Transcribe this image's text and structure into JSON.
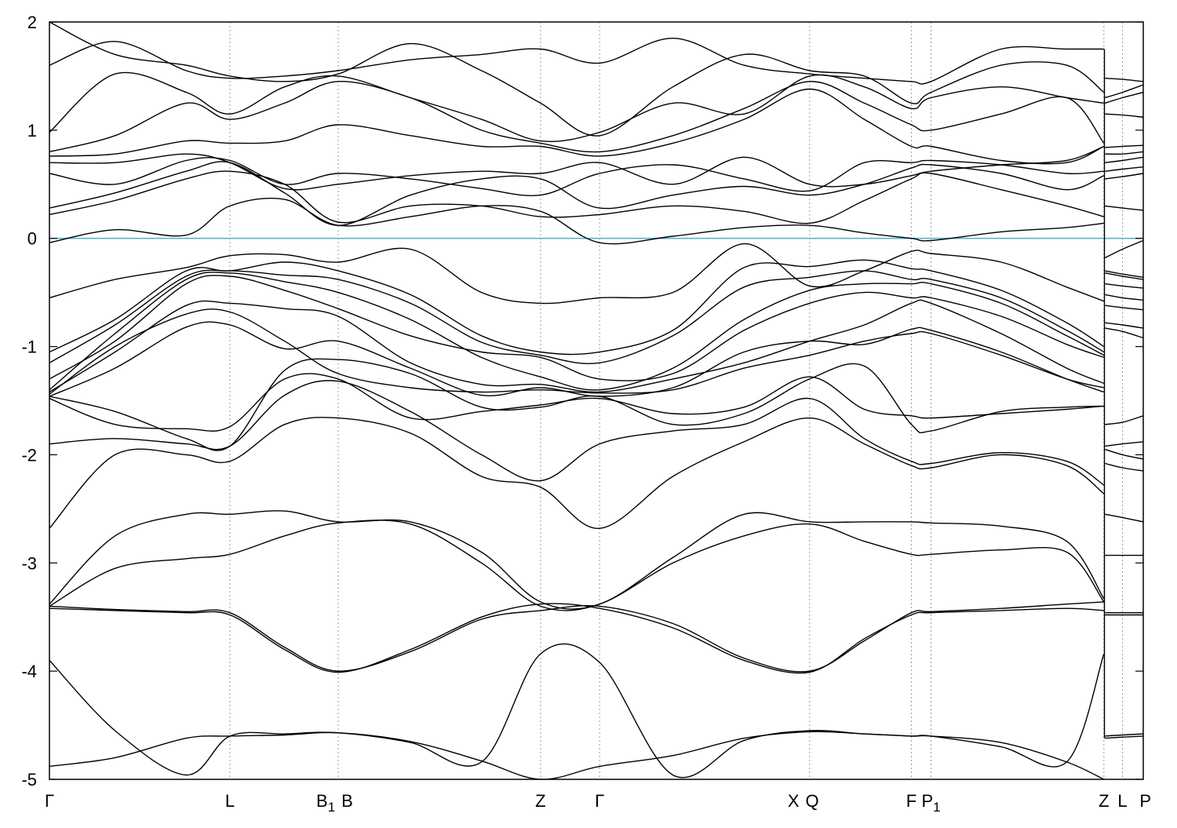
{
  "chart_data": {
    "type": "line",
    "title": "",
    "xlabel": "",
    "ylabel": "",
    "ylim": [
      -5,
      2
    ],
    "yticks": [
      -5,
      -4,
      -3,
      -2,
      -1,
      0,
      1,
      2
    ],
    "ytick_labels": [
      "-5",
      "-4",
      "-3",
      "-2",
      "-1",
      "0",
      "1",
      "2"
    ],
    "grid": "vertical dotted lines at high-symmetry points",
    "fermi_level": 0,
    "colors": {
      "bands": "#000000",
      "fermi": "#5ab4cf",
      "grid": "#9a9a9a"
    },
    "kpath_break_after_index": 9,
    "kpoints": [
      {
        "pos": 0.0,
        "label": "Γ",
        "sub": ""
      },
      {
        "pos": 0.165,
        "label": "L",
        "sub": ""
      },
      {
        "pos": 0.264,
        "label": "B",
        "sub": "1",
        "label2": "B"
      },
      {
        "pos": 0.449,
        "label": "Z",
        "sub": ""
      },
      {
        "pos": 0.503,
        "label": "Γ",
        "sub": ""
      },
      {
        "pos": 0.695,
        "label": "X",
        "sub": "",
        "label2": "Q"
      },
      {
        "pos": 0.788,
        "label": "F",
        "sub": ""
      },
      {
        "pos": 0.806,
        "label": "P",
        "sub": "1"
      },
      {
        "pos": 0.964,
        "label": "Z",
        "sub": ""
      },
      {
        "pos": 0.981,
        "label": "L",
        "sub": ""
      },
      {
        "pos": 1.0,
        "label": "P",
        "sub": ""
      }
    ],
    "x": [
      0.0,
      0.06,
      0.125,
      0.165,
      0.215,
      0.264,
      0.33,
      0.395,
      0.449,
      0.503,
      0.57,
      0.635,
      0.695,
      0.745,
      0.788,
      0.806,
      0.87,
      0.93,
      0.964
    ],
    "x_tail": [
      0.965,
      0.981,
      1.0
    ],
    "series": [
      {
        "values": [
          -4.88,
          -4.8,
          -4.62,
          -4.6,
          -4.59,
          -4.57,
          -4.65,
          -4.83,
          -5.0,
          -4.88,
          -4.78,
          -4.62,
          -4.56,
          -4.58,
          -4.6,
          -4.6,
          -4.66,
          -4.84,
          -5.0
        ],
        "tail": [
          -4.62,
          -4.61,
          -4.6
        ]
      },
      {
        "values": [
          -3.9,
          -4.55,
          -4.96,
          -4.6,
          -4.58,
          -4.57,
          -4.66,
          -4.84,
          -3.84,
          -3.92,
          -4.96,
          -4.64,
          -4.55,
          -4.58,
          -4.6,
          -4.6,
          -4.7,
          -4.84,
          -3.84
        ],
        "tail": [
          -4.6,
          -4.59,
          -4.58
        ]
      },
      {
        "values": [
          -3.42,
          -3.44,
          -3.46,
          -3.48,
          -3.8,
          -4.01,
          -3.8,
          -3.5,
          -3.38,
          -3.42,
          -3.6,
          -3.9,
          -4.01,
          -3.7,
          -3.48,
          -3.46,
          -3.44,
          -3.42,
          -3.44
        ],
        "tail": [
          -3.48,
          -3.48,
          -3.48
        ]
      },
      {
        "values": [
          -3.4,
          -3.43,
          -3.45,
          -3.46,
          -3.78,
          -4.0,
          -3.82,
          -3.52,
          -3.44,
          -3.4,
          -3.56,
          -3.88,
          -4.0,
          -3.72,
          -3.46,
          -3.45,
          -3.42,
          -3.38,
          -3.36
        ],
        "tail": [
          -3.46,
          -3.46,
          -3.46
        ]
      },
      {
        "values": [
          -3.38,
          -2.75,
          -2.55,
          -2.55,
          -2.52,
          -2.62,
          -2.62,
          -2.9,
          -3.36,
          -3.38,
          -2.95,
          -2.55,
          -2.62,
          -2.62,
          -2.62,
          -2.63,
          -2.66,
          -2.8,
          -3.33
        ],
        "tail": [
          -2.55,
          -2.58,
          -2.62
        ]
      },
      {
        "values": [
          -3.4,
          -3.05,
          -2.96,
          -2.92,
          -2.75,
          -2.63,
          -2.64,
          -3.0,
          -3.4,
          -3.38,
          -3.0,
          -2.75,
          -2.64,
          -2.8,
          -2.92,
          -2.92,
          -2.88,
          -2.9,
          -3.36
        ],
        "tail": [
          -2.93,
          -2.93,
          -2.93
        ]
      },
      {
        "values": [
          -2.68,
          -2.0,
          -2.0,
          -2.06,
          -1.72,
          -1.66,
          -1.8,
          -2.2,
          -2.3,
          -2.68,
          -2.2,
          -1.88,
          -1.66,
          -1.9,
          -2.1,
          -2.12,
          -2.0,
          -2.1,
          -2.36
        ],
        "tail": [
          -2.08,
          -2.12,
          -2.15
        ]
      },
      {
        "values": [
          -1.9,
          -1.85,
          -1.9,
          -1.92,
          -1.45,
          -1.32,
          -1.6,
          -2.0,
          -2.24,
          -1.9,
          -1.78,
          -1.72,
          -1.48,
          -1.85,
          -2.06,
          -2.08,
          -1.98,
          -2.06,
          -2.28
        ],
        "tail": [
          -1.95,
          -2.0,
          -2.04
        ]
      },
      {
        "values": [
          -1.48,
          -1.72,
          -1.76,
          -1.74,
          -1.3,
          -1.3,
          -1.66,
          -1.6,
          -1.54,
          -1.48,
          -1.62,
          -1.56,
          -1.28,
          -1.58,
          -1.64,
          -1.66,
          -1.62,
          -1.58,
          -1.55
        ],
        "tail": [
          -1.92,
          -1.9,
          -1.88
        ]
      },
      {
        "values": [
          -1.46,
          -1.6,
          -1.85,
          -1.92,
          -1.22,
          -1.12,
          -1.25,
          -1.56,
          -1.56,
          -1.46,
          -1.72,
          -1.62,
          -1.3,
          -1.18,
          -1.72,
          -1.78,
          -1.6,
          -1.56,
          -1.55
        ],
        "tail": [
          -1.72,
          -1.7,
          -1.64
        ]
      },
      {
        "values": [
          -1.46,
          -1.2,
          -0.82,
          -0.8,
          -1.02,
          -0.95,
          -1.2,
          -1.45,
          -1.38,
          -1.46,
          -1.38,
          -1.05,
          -0.95,
          -0.98,
          -0.84,
          -0.85,
          -1.05,
          -1.3,
          -1.42
        ],
        "tail": [
          -0.83,
          -0.86,
          -0.92
        ]
      },
      {
        "values": [
          -1.44,
          -1.0,
          -0.7,
          -0.68,
          -0.95,
          -1.25,
          -1.38,
          -1.42,
          -1.4,
          -1.43,
          -1.4,
          -1.2,
          -1.08,
          -0.95,
          -0.88,
          -0.88,
          -1.08,
          -1.3,
          -1.38
        ],
        "tail": [
          -0.78,
          -0.8,
          -0.83
        ]
      },
      {
        "values": [
          -1.42,
          -1.05,
          -0.62,
          -0.6,
          -0.65,
          -0.72,
          -1.15,
          -1.35,
          -1.35,
          -1.42,
          -1.3,
          -1.15,
          -0.95,
          -0.8,
          -0.6,
          -0.6,
          -0.88,
          -1.2,
          -1.34
        ],
        "tail": [
          -0.62,
          -0.64,
          -0.66
        ]
      },
      {
        "values": [
          -1.3,
          -0.95,
          -0.42,
          -0.35,
          -0.48,
          -0.65,
          -0.9,
          -1.05,
          -1.1,
          -1.3,
          -1.25,
          -0.85,
          -0.6,
          -0.5,
          -0.55,
          -0.55,
          -0.72,
          -0.98,
          -1.1
        ],
        "tail": [
          -0.52,
          -0.55,
          -0.57
        ]
      },
      {
        "values": [
          -1.4,
          -0.88,
          -0.38,
          -0.32,
          -0.4,
          -0.5,
          -0.75,
          -1.1,
          -1.28,
          -1.4,
          -1.2,
          -0.75,
          -0.48,
          -0.42,
          -0.42,
          -0.42,
          -0.6,
          -0.9,
          -1.08
        ],
        "tail": [
          -0.42,
          -0.44,
          -0.46
        ]
      },
      {
        "values": [
          -1.15,
          -0.8,
          -0.35,
          -0.3,
          -0.34,
          -0.38,
          -0.6,
          -0.96,
          -1.08,
          -1.15,
          -0.9,
          -0.45,
          -0.36,
          -0.3,
          -0.38,
          -0.38,
          -0.55,
          -0.85,
          -1.05
        ],
        "tail": [
          -0.32,
          -0.35,
          -0.38
        ]
      },
      {
        "values": [
          -1.05,
          -0.75,
          -0.3,
          -0.3,
          -0.22,
          -0.3,
          -0.52,
          -0.9,
          -1.05,
          -1.05,
          -0.85,
          -0.27,
          -0.26,
          -0.2,
          -0.28,
          -0.3,
          -0.48,
          -0.78,
          -1.0
        ],
        "tail": [
          -0.3,
          -0.33,
          -0.36
        ]
      },
      {
        "values": [
          -0.55,
          -0.38,
          -0.27,
          -0.16,
          -0.15,
          -0.22,
          -0.1,
          -0.5,
          -0.6,
          -0.55,
          -0.5,
          -0.05,
          -0.44,
          -0.3,
          -0.12,
          -0.14,
          -0.22,
          -0.45,
          -0.58
        ],
        "tail": [
          -0.18,
          -0.1,
          -0.02
        ]
      },
      {
        "values": [
          -0.04,
          0.08,
          0.03,
          0.3,
          0.36,
          0.12,
          0.2,
          0.3,
          0.25,
          -0.04,
          0.02,
          0.1,
          0.12,
          0.05,
          0.0,
          -0.02,
          0.06,
          0.1,
          0.14
        ],
        "tail": [
          0.3,
          0.28,
          0.26
        ]
      },
      {
        "values": [
          0.22,
          0.35,
          0.55,
          0.62,
          0.5,
          0.15,
          0.3,
          0.3,
          0.2,
          0.22,
          0.3,
          0.25,
          0.14,
          0.35,
          0.55,
          0.6,
          0.45,
          0.3,
          0.2
        ],
        "tail": [
          0.55,
          0.57,
          0.6
        ]
      },
      {
        "values": [
          0.28,
          0.42,
          0.62,
          0.7,
          0.42,
          0.12,
          0.4,
          0.55,
          0.55,
          0.28,
          0.4,
          0.48,
          0.4,
          0.5,
          0.65,
          0.68,
          0.6,
          0.45,
          0.58
        ],
        "tail": [
          0.62,
          0.64,
          0.66
        ]
      },
      {
        "values": [
          0.6,
          0.5,
          0.72,
          0.72,
          0.5,
          0.6,
          0.55,
          0.46,
          0.4,
          0.6,
          0.68,
          0.55,
          0.44,
          0.7,
          0.7,
          0.72,
          0.68,
          0.6,
          0.62
        ],
        "tail": [
          0.7,
          0.72,
          0.75
        ]
      },
      {
        "values": [
          0.7,
          0.7,
          0.78,
          0.7,
          0.46,
          0.5,
          0.58,
          0.62,
          0.6,
          0.7,
          0.5,
          0.75,
          0.5,
          0.5,
          0.58,
          0.62,
          0.68,
          0.72,
          0.85
        ],
        "tail": [
          0.78,
          0.78,
          0.8
        ]
      },
      {
        "values": [
          0.76,
          0.78,
          0.9,
          0.88,
          0.9,
          1.05,
          0.95,
          0.85,
          0.85,
          0.76,
          0.88,
          1.1,
          1.38,
          1.1,
          0.85,
          0.85,
          0.72,
          0.7,
          0.85
        ],
        "tail": [
          0.84,
          0.85,
          0.86
        ]
      },
      {
        "values": [
          0.8,
          0.95,
          1.25,
          1.1,
          1.25,
          1.45,
          1.3,
          1.0,
          0.88,
          0.8,
          0.95,
          1.2,
          1.45,
          1.25,
          1.05,
          1.0,
          1.15,
          1.3,
          0.88
        ],
        "tail": [
          1.15,
          1.14,
          1.12
        ]
      },
      {
        "values": [
          0.98,
          1.52,
          1.35,
          1.15,
          1.4,
          1.5,
          1.3,
          1.1,
          0.9,
          0.98,
          1.25,
          1.15,
          1.5,
          1.4,
          1.2,
          1.3,
          1.4,
          1.3,
          1.25
        ],
        "tail": [
          1.25,
          1.3,
          1.35
        ]
      },
      {
        "values": [
          1.6,
          1.82,
          1.55,
          1.48,
          1.5,
          1.55,
          1.65,
          1.7,
          1.75,
          1.62,
          1.85,
          1.6,
          1.52,
          1.48,
          1.45,
          1.45,
          1.75,
          1.75,
          1.75
        ],
        "tail": [
          1.48,
          1.47,
          1.45
        ]
      },
      {
        "values": [
          2.0,
          1.7,
          1.6,
          1.5,
          1.45,
          1.52,
          1.8,
          1.55,
          1.25,
          0.95,
          1.4,
          1.7,
          1.55,
          1.5,
          1.25,
          1.35,
          1.6,
          1.6,
          1.35
        ],
        "tail": [
          1.3,
          1.35,
          1.42
        ]
      }
    ]
  }
}
